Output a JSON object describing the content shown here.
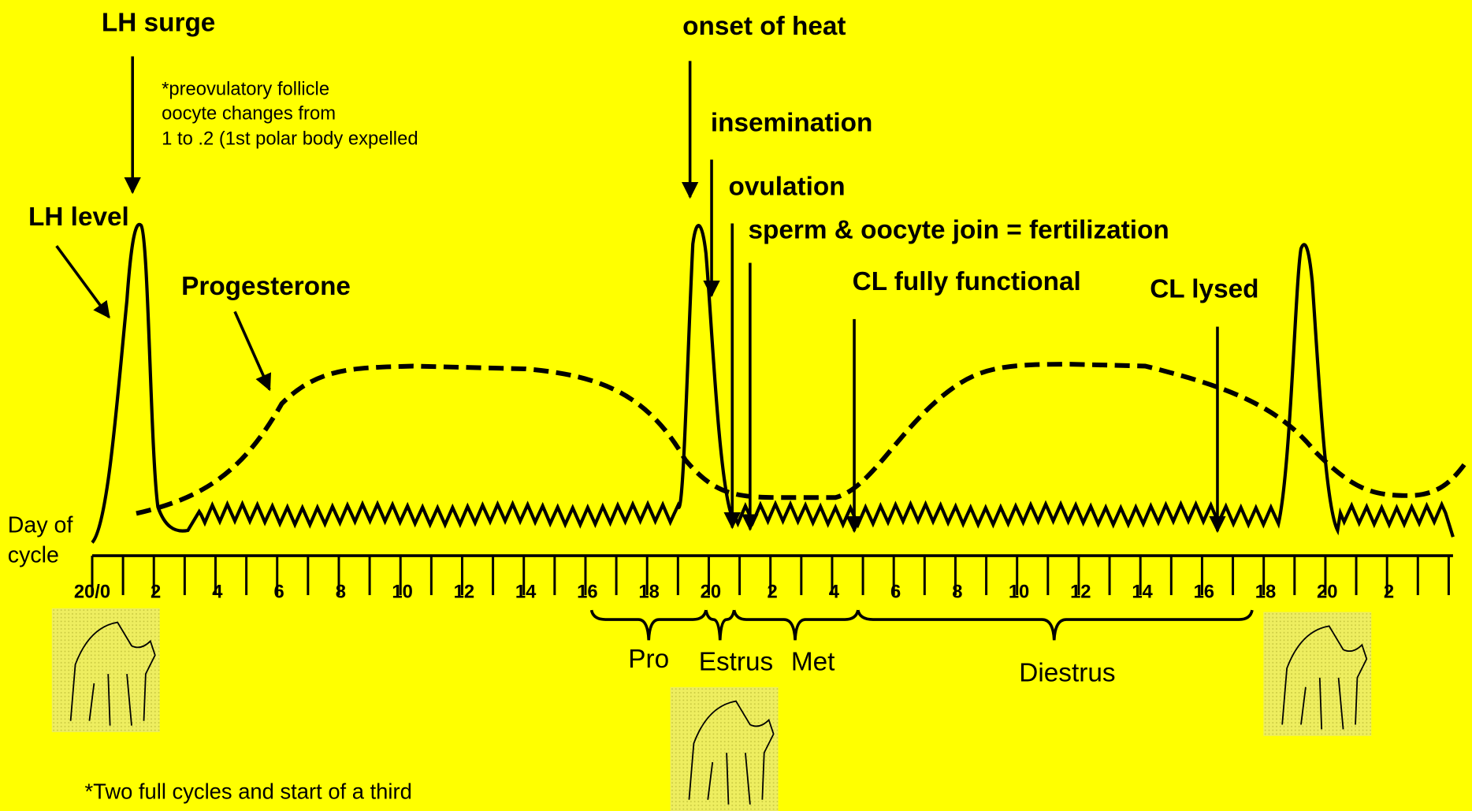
{
  "labels": {
    "lh_surge": "LH surge",
    "lh_level": "LH level",
    "progesterone": "Progesterone",
    "onset_of_heat": "onset of heat",
    "insemination": "insemination",
    "ovulation": "ovulation",
    "fertilization": "sperm & oocyte join = fertilization",
    "cl_functional": "CL fully functional",
    "cl_lysed": "CL lysed"
  },
  "note": [
    "*preovulatory follicle",
    "oocyte changes from",
    "1 to .2 (1st polar body expelled"
  ],
  "axis_label": [
    "Day of",
    "cycle"
  ],
  "ticks": [
    "20/0",
    "2",
    "4",
    "6",
    "8",
    "10",
    "12",
    "14",
    "16",
    "18",
    "20",
    "2",
    "4",
    "6",
    "8",
    "10",
    "12",
    "14",
    "16",
    "18",
    "20",
    "2"
  ],
  "phases": [
    "Pro",
    "Estrus",
    "Met",
    "Diestrus"
  ],
  "footnote": "*Two full cycles and start of a third"
}
